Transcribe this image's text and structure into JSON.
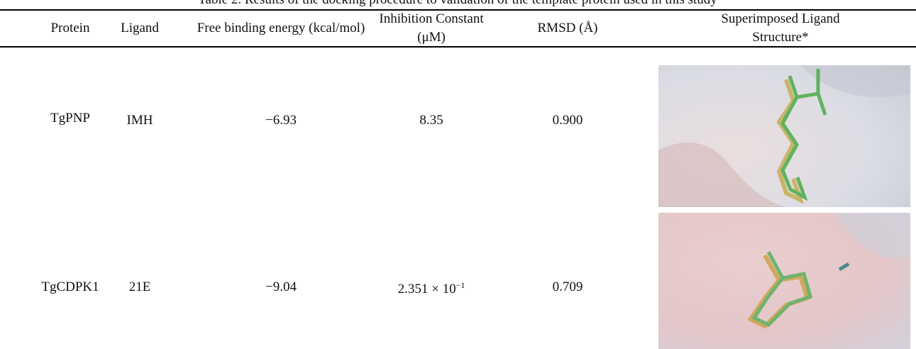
{
  "caption": "Table 2. Results of the docking procedure to validation of the template protein used in this study",
  "table": {
    "header": [
      "Protein",
      "Ligand",
      "Free binding energy (kcal/mol)",
      "Inhibition Constant (μM)",
      "RMSD (Å)",
      "Superimposed Ligand Structure*"
    ],
    "rows": [
      [
        "TgPNP",
        "IMH",
        "−6.93",
        {
          "base": "8.35"
        },
        "0.900"
      ],
      [
        "TgCDPK1",
        "21E",
        "−9.04",
        {
          "base": "2.351 × 10",
          "sup": "−1"
        },
        "0.709"
      ]
    ]
  }
}
